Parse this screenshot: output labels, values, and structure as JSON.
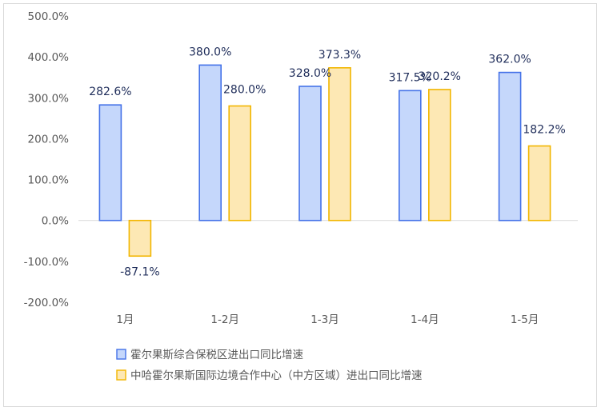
{
  "chart_data": {
    "type": "bar",
    "categories": [
      "1月",
      "1-2月",
      "1-3月",
      "1-4月",
      "1-5月"
    ],
    "series": [
      {
        "name": "霍尔果斯综合保税区进出口同比增速",
        "values": [
          282.6,
          380.0,
          328.0,
          317.5,
          362.0
        ],
        "labels": [
          "282.6%",
          "380.0%",
          "328.0%",
          "317.5%",
          "362.0%"
        ],
        "fill": "#c5d7fb",
        "stroke": "#4472e8"
      },
      {
        "name": "中哈霍尔果斯国际边境合作中心（中方区域）进出口同比增速",
        "values": [
          -87.1,
          280.0,
          373.3,
          320.2,
          182.2
        ],
        "labels": [
          "-87.1%",
          "280.0%",
          "373.3%",
          "320.2%",
          "182.2%"
        ],
        "fill": "#fde8b4",
        "stroke": "#f2b600"
      }
    ],
    "yticks": [
      "500.0%",
      "400.0%",
      "300.0%",
      "200.0%",
      "100.0%",
      "0.0%",
      "-100.0%",
      "-200.0%"
    ],
    "ylim": [
      -200,
      500
    ],
    "grid": false,
    "legend_position": "bottom-left"
  }
}
